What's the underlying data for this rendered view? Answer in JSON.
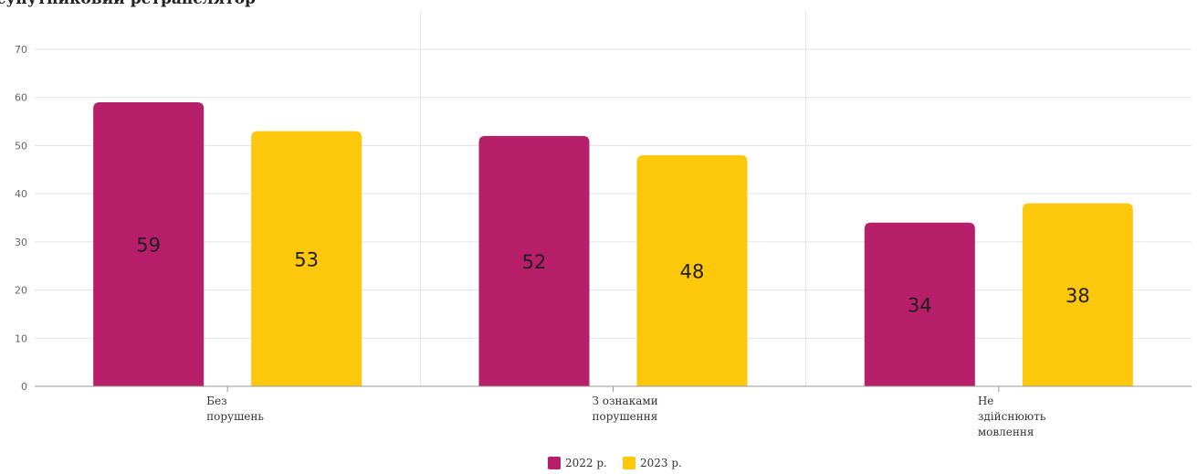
{
  "chart_data": {
    "type": "bar",
    "title": "супутниковий ретранслятор",
    "categories": [
      [
        "Без",
        "порушень"
      ],
      [
        "З ознаками",
        "порушення"
      ],
      [
        "Не",
        "здійснюють",
        "мовлення"
      ]
    ],
    "series": [
      {
        "name": "2022 р.",
        "color": "#b71f6b",
        "values": [
          59,
          52,
          34
        ]
      },
      {
        "name": "2023 р.",
        "color": "#fdc70c",
        "values": [
          53,
          48,
          38
        ]
      }
    ],
    "ylim": [
      0,
      75
    ],
    "yticks": [
      0,
      10,
      20,
      30,
      40,
      50,
      60,
      70
    ],
    "grid": true,
    "legend": "bottom-center"
  }
}
